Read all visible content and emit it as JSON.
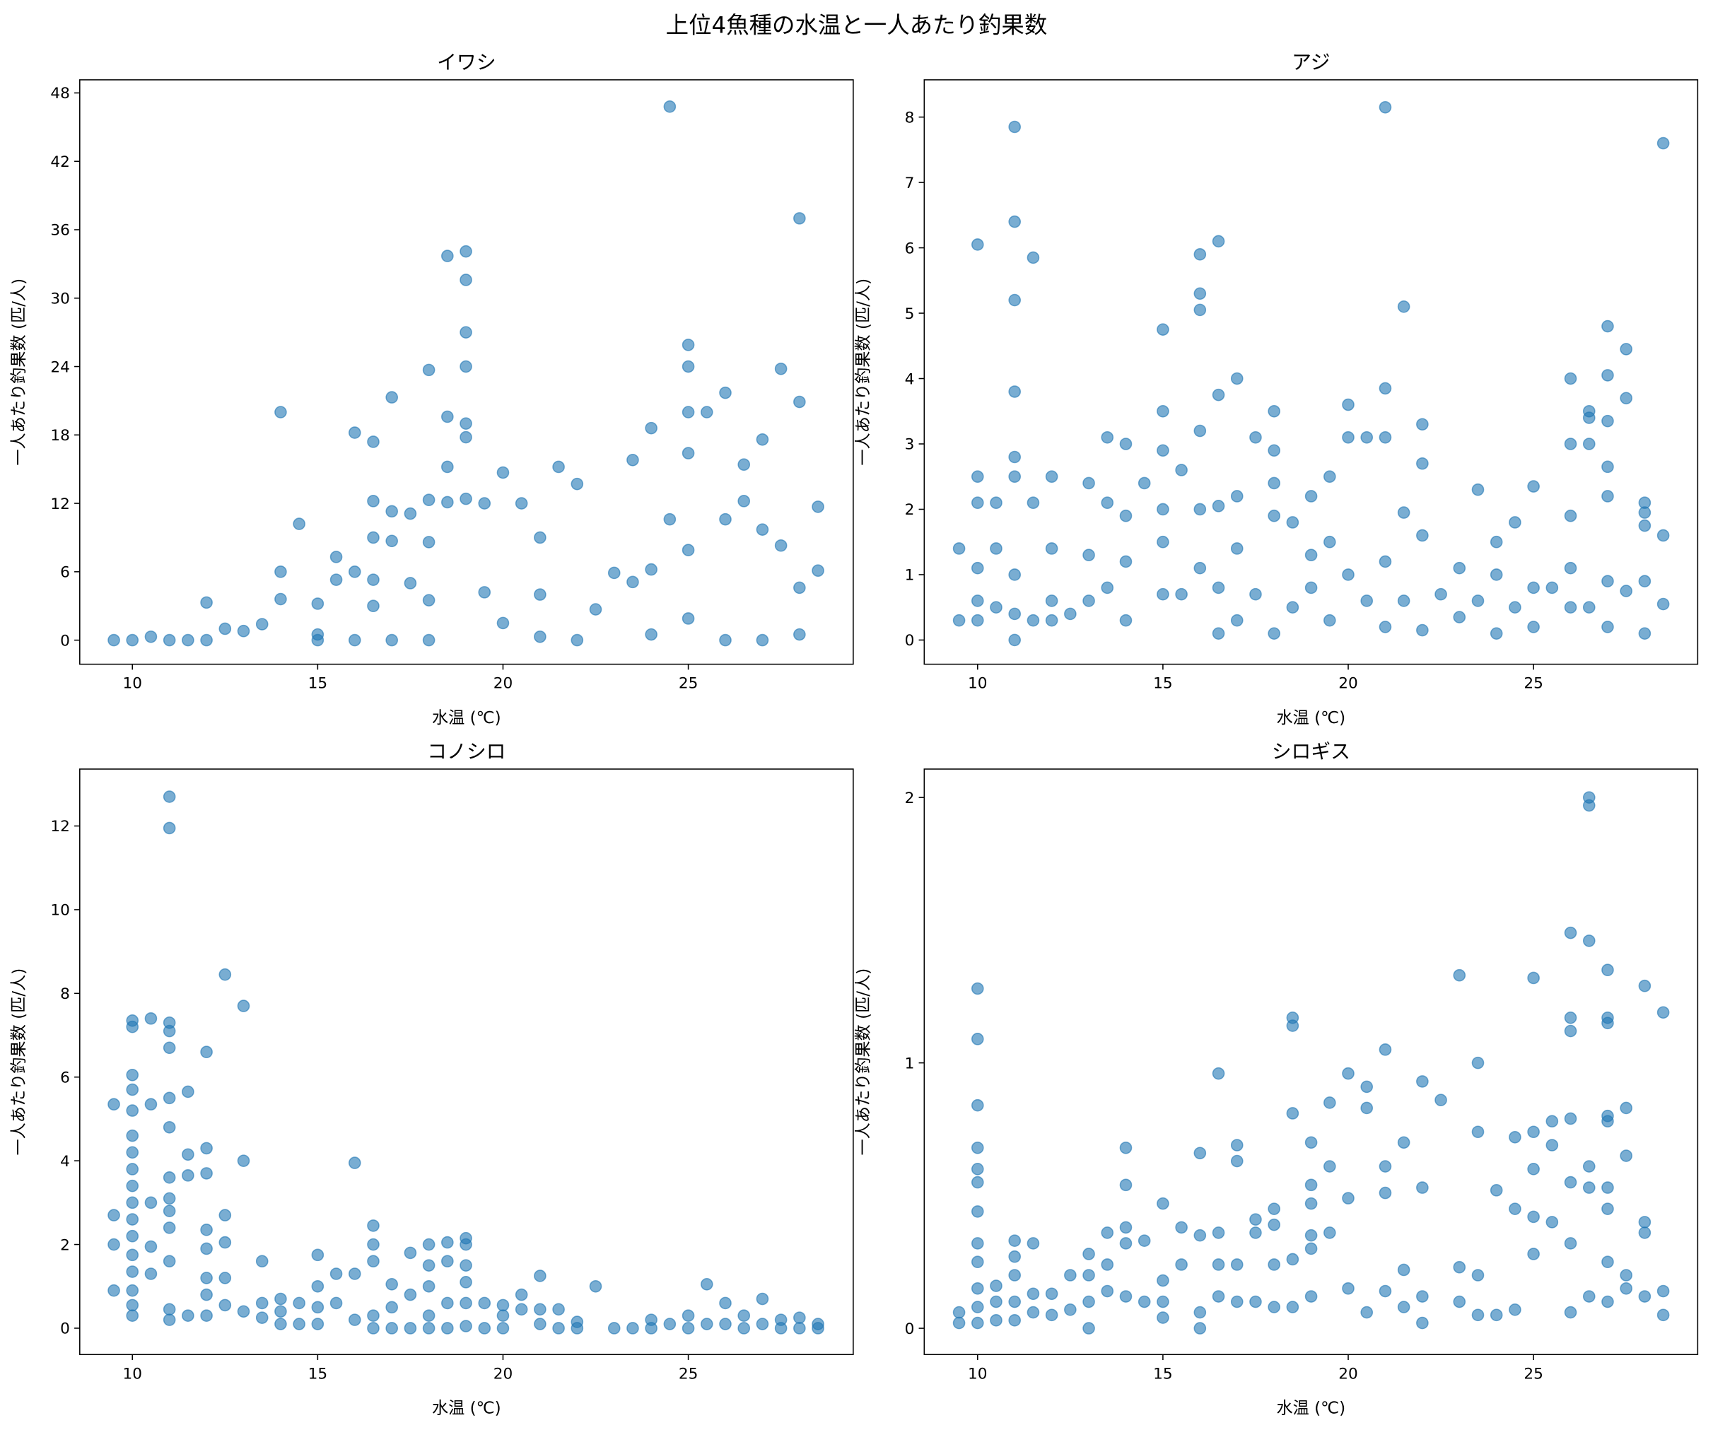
{
  "title": "上位4魚種の水温と一人あたり釣果数",
  "chart_data": [
    {
      "type": "scatter",
      "title": "イワシ",
      "xlabel": "水温 (℃)",
      "ylabel": "一人あたり釣果数 (匹/人)",
      "color": "#1f77b4",
      "xlim": [
        8.58,
        29.45
      ],
      "ylim": [
        -2.11,
        49.15
      ],
      "xticks": [
        10,
        15,
        20,
        25
      ],
      "yticks": [
        0,
        6,
        12,
        18,
        24,
        30,
        36,
        42,
        48
      ],
      "x": [
        9.5,
        10,
        10.5,
        11,
        11.5,
        12,
        12,
        12.5,
        13,
        13.5,
        14,
        14,
        14,
        14.5,
        15,
        15,
        15,
        15.5,
        15.5,
        16,
        16,
        16,
        16.5,
        16.5,
        16.5,
        16.5,
        16.5,
        17,
        17,
        17,
        17,
        17.5,
        17.5,
        18,
        18,
        18,
        18,
        18,
        18.5,
        18.5,
        18.5,
        18.5,
        19,
        19,
        19,
        19,
        19,
        19,
        19,
        19.5,
        19.5,
        20,
        20,
        20.5,
        21,
        21,
        21,
        21.5,
        22,
        22,
        22.5,
        23,
        23.5,
        23.5,
        24,
        24,
        24,
        24.5,
        24.5,
        25,
        25,
        25,
        25,
        25,
        25,
        25.5,
        26,
        26,
        26,
        26.5,
        26.5,
        27,
        27,
        27,
        27.5,
        27.5,
        28,
        28,
        28,
        28,
        28.5,
        28.5
      ],
      "values": [
        0,
        0,
        0.3,
        0,
        0,
        3.3,
        0,
        1,
        0.8,
        1.4,
        20,
        6,
        3.6,
        10.2,
        3.2,
        0.5,
        0,
        7.3,
        5.3,
        18.2,
        6,
        0,
        17.4,
        12.2,
        9,
        5.3,
        3,
        21.3,
        11.3,
        8.7,
        0,
        11.1,
        5,
        23.7,
        12.3,
        8.6,
        3.5,
        0,
        33.7,
        19.6,
        15.2,
        12.1,
        34.1,
        31.6,
        27,
        24,
        19,
        17.8,
        12.4,
        12,
        4.2,
        14.7,
        1.5,
        12,
        9,
        4,
        0.3,
        15.2,
        13.7,
        0,
        2.7,
        5.9,
        15.8,
        5.1,
        18.6,
        6.2,
        0.5,
        46.8,
        10.6,
        25.9,
        24,
        20,
        16.4,
        7.9,
        1.9,
        20,
        21.7,
        10.6,
        0,
        15.4,
        12.2,
        9.7,
        17.6,
        0,
        23.8,
        8.3,
        37,
        20.9,
        4.6,
        0.5,
        11.7,
        6.1
      ]
    },
    {
      "type": "scatter",
      "title": "アジ",
      "xlabel": "水温 (℃)",
      "ylabel": "一人あたり釣果数 (匹/人)",
      "color": "#1f77b4",
      "xlim": [
        8.56,
        29.43
      ],
      "ylim": [
        -0.37,
        8.57
      ],
      "xticks": [
        10,
        15,
        20,
        25
      ],
      "yticks": [
        0,
        1,
        2,
        3,
        4,
        5,
        6,
        7,
        8
      ],
      "x": [
        9.5,
        9.5,
        10,
        10,
        10,
        10,
        10,
        10,
        10.5,
        10.5,
        10.5,
        11,
        11,
        11,
        11,
        11,
        11,
        11,
        11,
        11,
        11.5,
        11.5,
        11.5,
        12,
        12,
        12,
        12,
        12.5,
        13,
        13,
        13,
        13.5,
        13.5,
        13.5,
        14,
        14,
        14,
        14,
        14.5,
        15,
        15,
        15,
        15,
        15,
        15,
        15.5,
        15.5,
        16,
        16,
        16,
        16,
        16,
        16,
        16.5,
        16.5,
        16.5,
        16.5,
        16.5,
        17,
        17,
        17,
        17,
        17.5,
        17.5,
        18,
        18,
        18,
        18,
        18,
        18.5,
        18.5,
        19,
        19,
        19,
        19.5,
        19.5,
        19.5,
        20,
        20,
        20,
        20.5,
        20.5,
        21,
        21,
        21,
        21,
        21,
        21.5,
        21.5,
        21.5,
        22,
        22,
        22,
        22,
        22.5,
        23,
        23,
        23.5,
        23.5,
        24,
        24,
        24,
        24.5,
        24.5,
        25,
        25,
        25,
        25.5,
        26,
        26,
        26,
        26,
        26,
        26.5,
        26.5,
        26.5,
        26.5,
        27,
        27,
        27,
        27,
        27,
        27,
        27,
        27.5,
        27.5,
        27.5,
        28,
        28,
        28,
        28,
        28,
        28.5,
        28.5,
        28.5
      ],
      "values": [
        1.4,
        0.3,
        6.05,
        2.5,
        2.1,
        1.1,
        0.6,
        0.3,
        2.1,
        1.4,
        0.5,
        7.85,
        6.4,
        5.2,
        3.8,
        2.8,
        2.5,
        1,
        0.4,
        0,
        5.85,
        2.1,
        0.3,
        2.5,
        1.4,
        0.6,
        0.3,
        0.4,
        2.4,
        1.3,
        0.6,
        3.1,
        2.1,
        0.8,
        3,
        1.9,
        1.2,
        0.3,
        2.4,
        4.75,
        3.5,
        2.9,
        2,
        1.5,
        0.7,
        2.6,
        0.7,
        5.9,
        5.3,
        5.05,
        3.2,
        2,
        1.1,
        6.1,
        3.75,
        2.05,
        0.8,
        0.1,
        4,
        2.2,
        1.4,
        0.3,
        3.1,
        0.7,
        3.5,
        2.9,
        2.4,
        1.9,
        0.1,
        1.8,
        0.5,
        2.2,
        1.3,
        0.8,
        2.5,
        1.5,
        0.3,
        3.6,
        3.1,
        1,
        3.1,
        0.6,
        8.15,
        3.85,
        3.1,
        1.2,
        0.2,
        5.1,
        1.95,
        0.6,
        3.3,
        2.7,
        1.6,
        0.15,
        0.7,
        1.1,
        0.35,
        2.3,
        0.6,
        1.5,
        1,
        0.1,
        1.8,
        0.5,
        2.35,
        0.8,
        0.2,
        0.8,
        4,
        3,
        1.9,
        1.1,
        0.5,
        3.5,
        3.4,
        3,
        0.5,
        4.8,
        4.05,
        3.35,
        2.65,
        2.2,
        0.9,
        0.2,
        4.45,
        3.7,
        0.75,
        2.1,
        1.95,
        1.75,
        0.9,
        0.1,
        7.6,
        1.6,
        0.55
      ]
    },
    {
      "type": "scatter",
      "title": "コノシロ",
      "xlabel": "水温 (℃)",
      "ylabel": "一人あたり釣果数 (匹/人)",
      "color": "#1f77b4",
      "xlim": [
        8.58,
        29.45
      ],
      "ylim": [
        -0.63,
        13.36
      ],
      "xticks": [
        10,
        15,
        20,
        25
      ],
      "yticks": [
        0,
        2,
        4,
        6,
        8,
        10,
        12
      ],
      "x": [
        9.5,
        9.5,
        9.5,
        9.5,
        10,
        10,
        10,
        10,
        10,
        10,
        10,
        10,
        10,
        10,
        10,
        10,
        10,
        10,
        10,
        10,
        10,
        10.5,
        10.5,
        10.5,
        10.5,
        10.5,
        11,
        11,
        11,
        11,
        11,
        11,
        11,
        11,
        11,
        11,
        11,
        11,
        11,
        11,
        11.5,
        11.5,
        11.5,
        11.5,
        12,
        12,
        12,
        12,
        12,
        12,
        12,
        12,
        12.5,
        12.5,
        12.5,
        12.5,
        12.5,
        13,
        13,
        13,
        13.5,
        13.5,
        13.5,
        14,
        14,
        14,
        14.5,
        14.5,
        15,
        15,
        15,
        15,
        15.5,
        15.5,
        16,
        16,
        16,
        16.5,
        16.5,
        16.5,
        16.5,
        16.5,
        17,
        17,
        17,
        17.5,
        17.5,
        17.5,
        18,
        18,
        18,
        18,
        18,
        18.5,
        18.5,
        18.5,
        18.5,
        19,
        19,
        19,
        19,
        19,
        19,
        19.5,
        19.5,
        20,
        20,
        20,
        20.5,
        20.5,
        21,
        21,
        21,
        21.5,
        21.5,
        22,
        22,
        22.5,
        23,
        23.5,
        24,
        24,
        24.5,
        25,
        25,
        25.5,
        25.5,
        26,
        26,
        26.5,
        26.5,
        27,
        27,
        27.5,
        27.5,
        28,
        28,
        28.5,
        28.5
      ],
      "values": [
        5.35,
        2.7,
        2,
        0.9,
        7.35,
        7.2,
        6.05,
        5.7,
        5.2,
        4.6,
        4.2,
        3.8,
        3.4,
        3,
        2.6,
        2.2,
        1.75,
        1.35,
        0.9,
        0.55,
        0.3,
        7.4,
        5.35,
        3,
        1.95,
        1.3,
        12.7,
        11.95,
        7.3,
        7.1,
        6.7,
        5.5,
        4.8,
        3.6,
        3.1,
        2.8,
        2.4,
        1.6,
        0.45,
        0.2,
        5.65,
        4.15,
        3.65,
        0.3,
        6.6,
        4.3,
        3.7,
        2.35,
        1.9,
        1.2,
        0.8,
        0.3,
        8.45,
        2.7,
        2.05,
        1.2,
        0.55,
        7.7,
        4,
        0.4,
        1.6,
        0.6,
        0.25,
        0.7,
        0.4,
        0.1,
        0.6,
        0.1,
        1.75,
        1,
        0.5,
        0.1,
        1.3,
        0.6,
        3.95,
        1.3,
        0.2,
        2.45,
        2,
        1.6,
        0.3,
        0,
        1.05,
        0.5,
        0,
        1.8,
        0.8,
        0,
        2,
        1.5,
        1,
        0.3,
        0,
        2.05,
        1.6,
        0.6,
        0,
        2.15,
        2,
        1.5,
        1.1,
        0.6,
        0.05,
        0.6,
        0,
        0.55,
        0.3,
        0,
        0.8,
        0.45,
        1.25,
        0.45,
        0.1,
        0.45,
        0,
        0.15,
        0,
        1,
        0,
        0,
        0.2,
        0,
        0.1,
        0.3,
        0,
        1.05,
        0.1,
        0.6,
        0.1,
        0.3,
        0,
        0.7,
        0.1,
        0.2,
        0,
        0.25,
        0,
        0.1,
        0
      ]
    },
    {
      "type": "scatter",
      "title": "シロギス",
      "xlabel": "水温 (℃)",
      "ylabel": "一人あたり釣果数 (匹/人)",
      "color": "#1f77b4",
      "xlim": [
        8.56,
        29.43
      ],
      "ylim": [
        -0.099,
        2.107
      ],
      "xticks": [
        10,
        15,
        20,
        25
      ],
      "yticks": [
        0,
        1,
        2
      ],
      "x": [
        9.5,
        9.5,
        10,
        10,
        10,
        10,
        10,
        10,
        10,
        10,
        10,
        10,
        10,
        10,
        10.5,
        10.5,
        10.5,
        11,
        11,
        11,
        11,
        11,
        11.5,
        11.5,
        11.5,
        12,
        12,
        12.5,
        12.5,
        13,
        13,
        13,
        13,
        13.5,
        13.5,
        13.5,
        14,
        14,
        14,
        14,
        14,
        14.5,
        14.5,
        15,
        15,
        15,
        15,
        15.5,
        15.5,
        16,
        16,
        16,
        16,
        16.5,
        16.5,
        16.5,
        16.5,
        17,
        17,
        17,
        17,
        17.5,
        17.5,
        17.5,
        18,
        18,
        18,
        18,
        18.5,
        18.5,
        18.5,
        18.5,
        18.5,
        19,
        19,
        19,
        19,
        19,
        19,
        19.5,
        19.5,
        19.5,
        20,
        20,
        20,
        20.5,
        20.5,
        20.5,
        21,
        21,
        21,
        21,
        21.5,
        21.5,
        21.5,
        22,
        22,
        22,
        22,
        22.5,
        23,
        23,
        23,
        23.5,
        23.5,
        23.5,
        23.5,
        24,
        24,
        24.5,
        24.5,
        24.5,
        25,
        25,
        25,
        25,
        25,
        25.5,
        25.5,
        25.5,
        26,
        26,
        26,
        26,
        26,
        26,
        26,
        26.5,
        26.5,
        26.5,
        26.5,
        26.5,
        26.5,
        27,
        27,
        27,
        27,
        27,
        27,
        27,
        27,
        27,
        27.5,
        27.5,
        27.5,
        27.5,
        28,
        28,
        28,
        28,
        28.5,
        28.5,
        28.5
      ],
      "values": [
        0.06,
        0.02,
        1.28,
        1.09,
        0.84,
        0.68,
        0.6,
        0.55,
        0.44,
        0.32,
        0.25,
        0.15,
        0.08,
        0.02,
        0.16,
        0.1,
        0.03,
        0.33,
        0.27,
        0.2,
        0.1,
        0.03,
        0.32,
        0.13,
        0.06,
        0.13,
        0.05,
        0.2,
        0.07,
        0.28,
        0.2,
        0.1,
        0,
        0.36,
        0.24,
        0.14,
        0.68,
        0.54,
        0.38,
        0.32,
        0.12,
        0.33,
        0.1,
        0.47,
        0.18,
        0.1,
        0.04,
        0.38,
        0.24,
        0.66,
        0.35,
        0.06,
        0,
        0.96,
        0.36,
        0.24,
        0.12,
        0.69,
        0.63,
        0.24,
        0.1,
        0.41,
        0.36,
        0.1,
        0.45,
        0.39,
        0.24,
        0.08,
        1.17,
        1.14,
        0.81,
        0.26,
        0.08,
        0.7,
        0.54,
        0.47,
        0.35,
        0.3,
        0.12,
        0.85,
        0.61,
        0.36,
        0.96,
        0.49,
        0.15,
        0.91,
        0.83,
        0.06,
        1.05,
        0.61,
        0.51,
        0.14,
        0.7,
        0.22,
        0.08,
        0.93,
        0.53,
        0.12,
        0.02,
        0.86,
        1.33,
        0.23,
        0.1,
        1,
        0.74,
        0.2,
        0.05,
        0.52,
        0.05,
        0.72,
        0.45,
        0.07,
        1.32,
        0.74,
        0.6,
        0.42,
        0.28,
        0.78,
        0.69,
        0.4,
        1.49,
        1.17,
        1.12,
        0.79,
        0.55,
        0.32,
        0.06,
        2,
        1.97,
        1.46,
        0.61,
        0.53,
        0.12,
        1.35,
        1.17,
        1.15,
        0.8,
        0.78,
        0.53,
        0.45,
        0.25,
        0.1,
        0.83,
        0.65,
        0.2,
        0.15,
        1.29,
        0.4,
        0.36,
        0.12,
        1.19,
        0.14,
        0.05
      ]
    }
  ]
}
